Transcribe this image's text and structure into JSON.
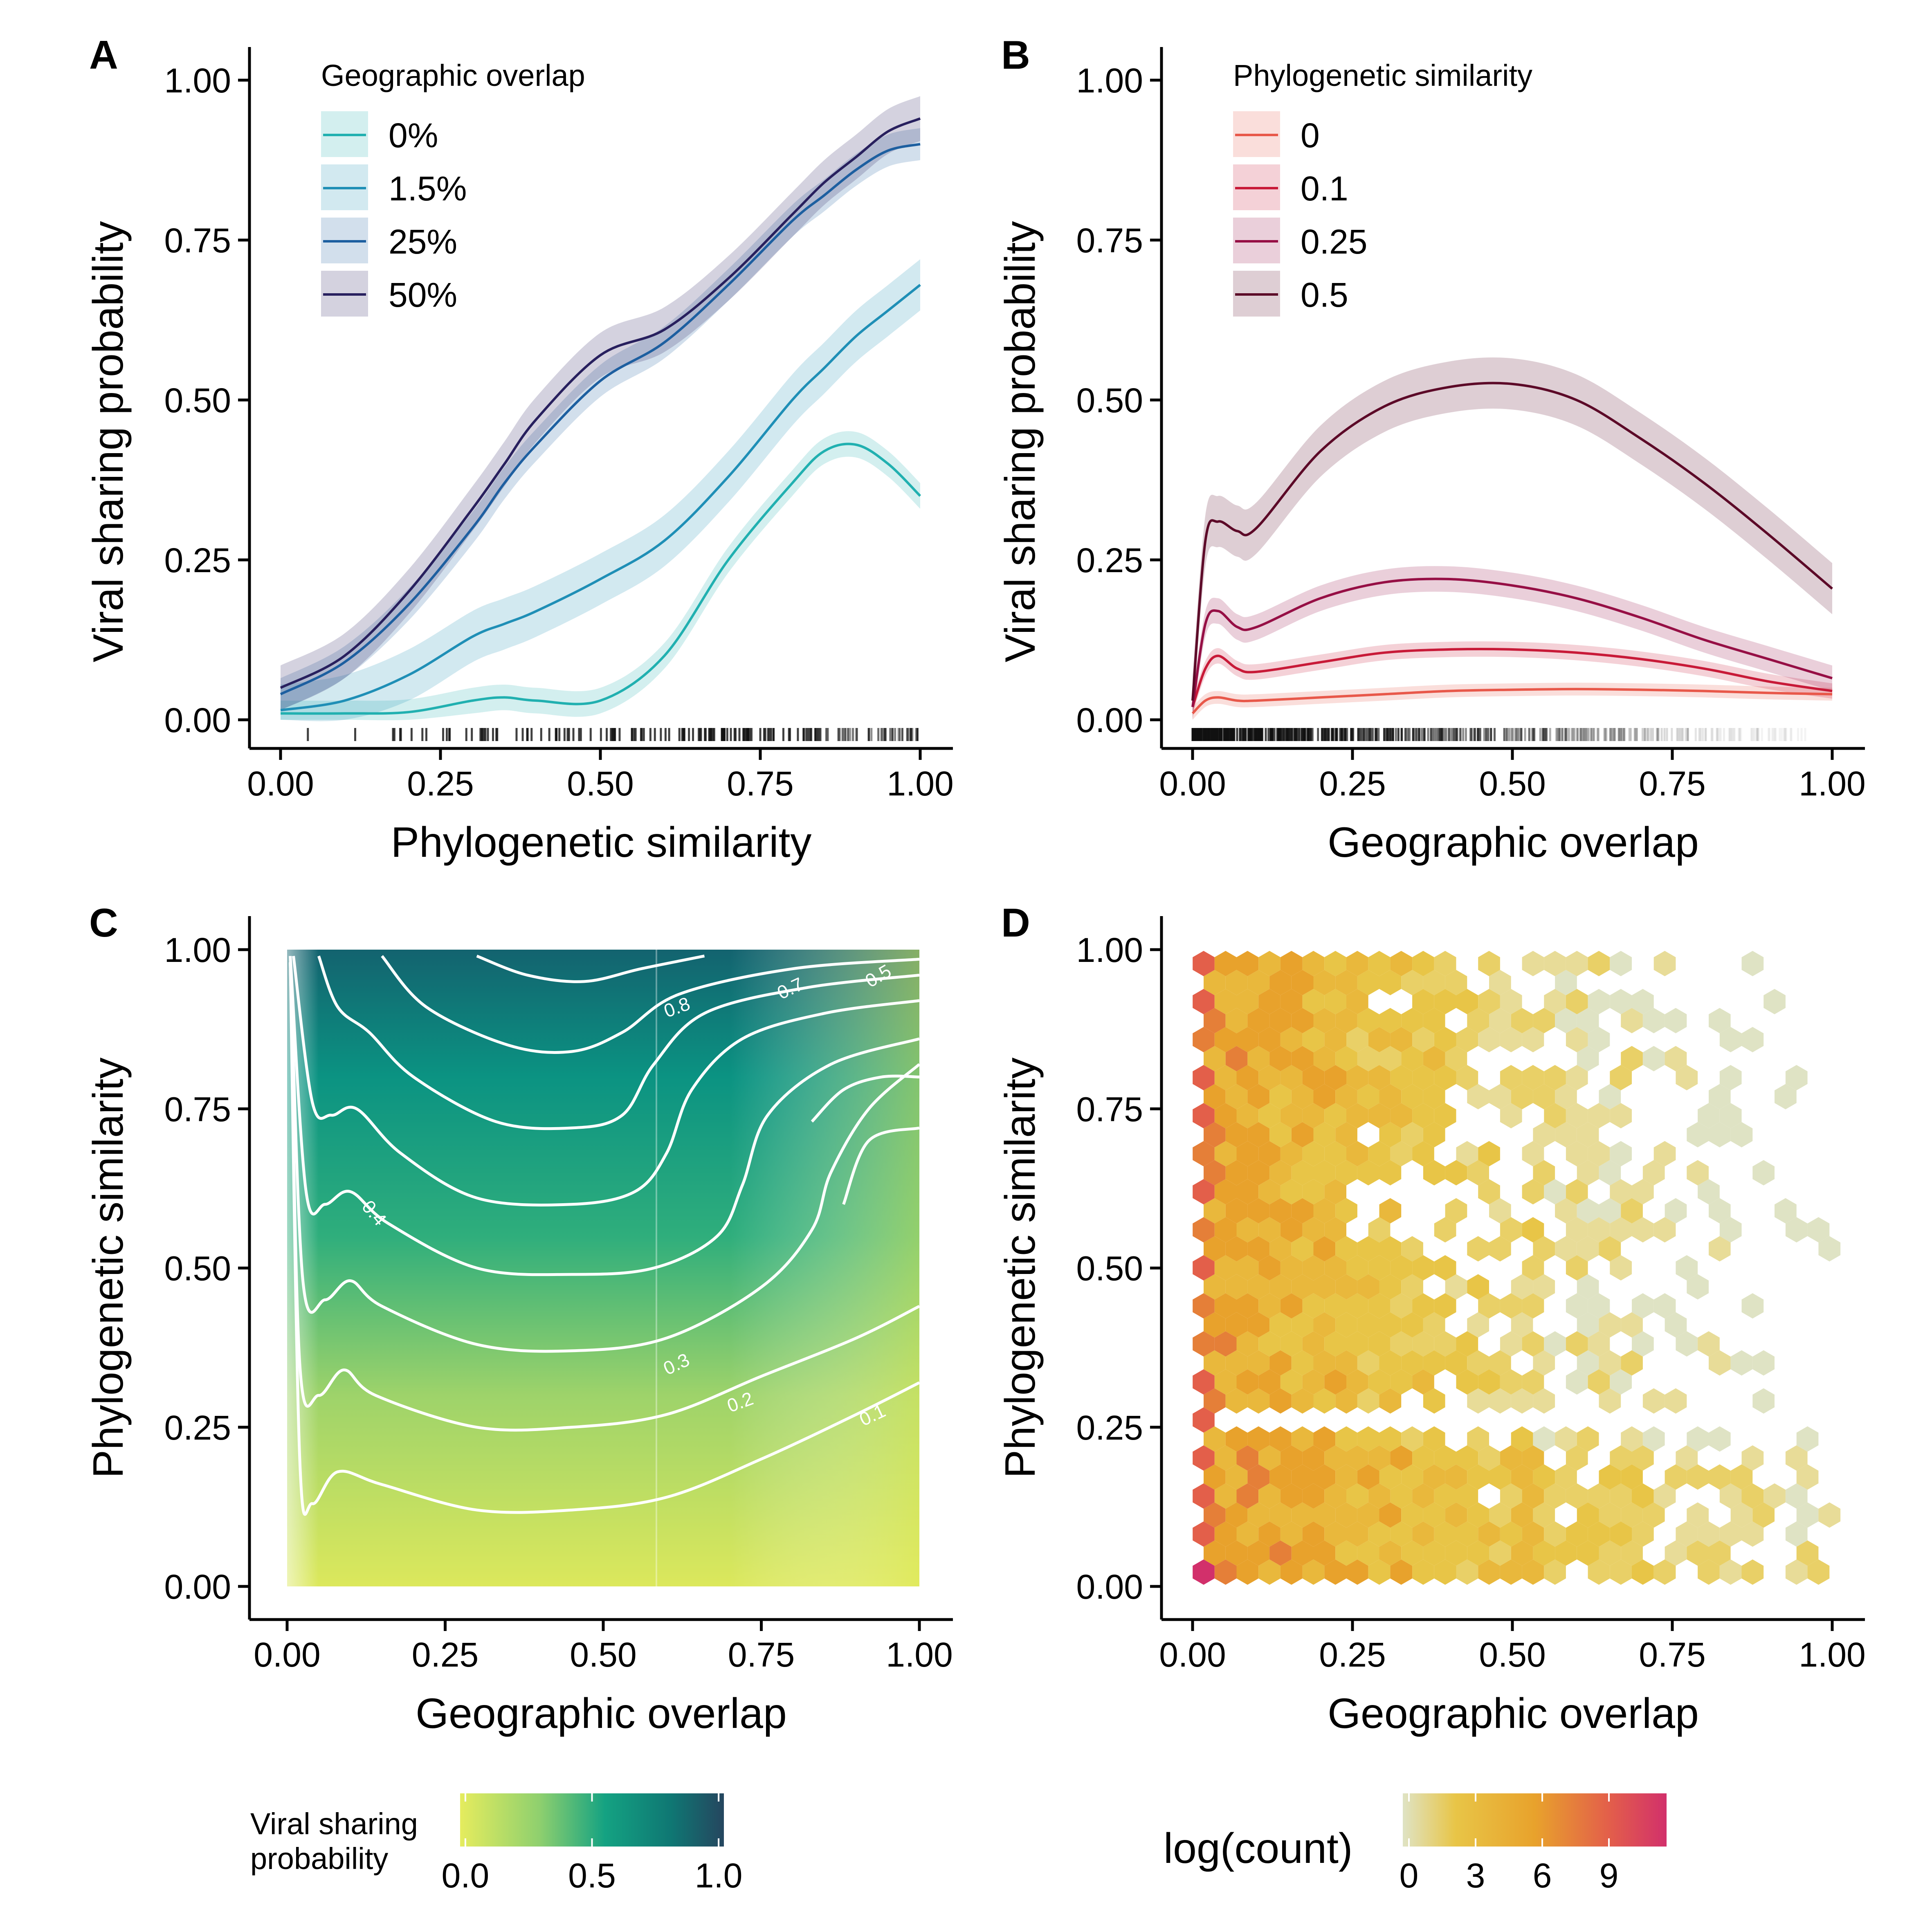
{
  "chart_data": [
    {
      "panel": "A",
      "type": "line",
      "xlabel": "Phylogenetic similarity",
      "ylabel": "Viral sharing probability",
      "xlim": [
        0,
        1
      ],
      "ylim": [
        0,
        1
      ],
      "x_ticks": [
        "0.00",
        "0.25",
        "0.50",
        "0.75",
        "1.00"
      ],
      "y_ticks": [
        "0.00",
        "0.25",
        "0.50",
        "0.75",
        "1.00"
      ],
      "legend": {
        "title": "Geographic overlap",
        "placement": "top-left"
      },
      "x": [
        0,
        0.1,
        0.2,
        0.3,
        0.35,
        0.4,
        0.5,
        0.6,
        0.7,
        0.8,
        0.85,
        0.9,
        0.95,
        1.0
      ],
      "series": [
        {
          "name": "0%",
          "color": "#21b0b0",
          "values": [
            0.01,
            0.01,
            0.012,
            0.03,
            0.035,
            0.03,
            0.03,
            0.1,
            0.25,
            0.37,
            0.42,
            0.43,
            0.4,
            0.35
          ],
          "band": 0.02
        },
        {
          "name": "1.5%",
          "color": "#1f8fb6",
          "values": [
            0.015,
            0.03,
            0.07,
            0.13,
            0.15,
            0.17,
            0.22,
            0.28,
            0.38,
            0.5,
            0.55,
            0.6,
            0.64,
            0.68
          ],
          "band": 0.04
        },
        {
          "name": "25%",
          "color": "#1d5fa0",
          "values": [
            0.04,
            0.09,
            0.18,
            0.3,
            0.37,
            0.43,
            0.53,
            0.59,
            0.68,
            0.78,
            0.82,
            0.86,
            0.89,
            0.9
          ],
          "band": 0.025
        },
        {
          "name": "50%",
          "color": "#28205e",
          "values": [
            0.05,
            0.1,
            0.2,
            0.33,
            0.4,
            0.47,
            0.57,
            0.61,
            0.69,
            0.79,
            0.84,
            0.88,
            0.92,
            0.94
          ],
          "band": 0.035
        }
      ]
    },
    {
      "panel": "B",
      "type": "line",
      "xlabel": "Geographic overlap",
      "ylabel": "Viral sharing probability",
      "xlim": [
        0,
        1
      ],
      "ylim": [
        0,
        1
      ],
      "x_ticks": [
        "0.00",
        "0.25",
        "0.50",
        "0.75",
        "1.00"
      ],
      "y_ticks": [
        "0.00",
        "0.25",
        "0.50",
        "0.75",
        "1.00"
      ],
      "legend": {
        "title": "Phylogenetic similarity",
        "placement": "top-left"
      },
      "x": [
        0,
        0.02,
        0.04,
        0.07,
        0.1,
        0.2,
        0.3,
        0.4,
        0.5,
        0.6,
        0.7,
        0.8,
        0.9,
        1.0
      ],
      "series": [
        {
          "name": "0",
          "color": "#e8584a",
          "values": [
            0.01,
            0.03,
            0.035,
            0.03,
            0.03,
            0.035,
            0.04,
            0.045,
            0.047,
            0.048,
            0.047,
            0.045,
            0.042,
            0.04
          ],
          "band": 0.01
        },
        {
          "name": "0.1",
          "color": "#c81a38",
          "values": [
            0.02,
            0.08,
            0.1,
            0.08,
            0.075,
            0.09,
            0.105,
            0.11,
            0.11,
            0.105,
            0.095,
            0.08,
            0.06,
            0.045
          ],
          "band": 0.012
        },
        {
          "name": "0.25",
          "color": "#960f45",
          "values": [
            0.02,
            0.15,
            0.17,
            0.145,
            0.145,
            0.19,
            0.215,
            0.22,
            0.21,
            0.19,
            0.16,
            0.125,
            0.095,
            0.065
          ],
          "band": 0.02
        },
        {
          "name": "0.5",
          "color": "#5c0a28",
          "values": [
            0.03,
            0.28,
            0.31,
            0.295,
            0.3,
            0.42,
            0.49,
            0.52,
            0.525,
            0.5,
            0.44,
            0.37,
            0.29,
            0.205
          ],
          "band": 0.04
        }
      ]
    },
    {
      "panel": "C",
      "type": "heatmap",
      "xlabel": "Geographic overlap",
      "ylabel": "Phylogenetic similarity",
      "xlim": [
        0,
        1
      ],
      "ylim": [
        0,
        1
      ],
      "x_ticks": [
        "0.00",
        "0.25",
        "0.50",
        "0.75",
        "1.00"
      ],
      "y_ticks": [
        "0.00",
        "0.25",
        "0.50",
        "0.75",
        "1.00"
      ],
      "contour_labels": [
        "0.8",
        "0.7",
        "0.5",
        "0.4",
        "0.3",
        "0.2",
        "0.1"
      ],
      "colorbar": {
        "title": "Viral sharing probability",
        "ticks": [
          "0.0",
          "0.5",
          "1.0"
        ],
        "colors": [
          "#e5ec5e",
          "#5cbf76",
          "#0c9a84",
          "#25465f"
        ]
      }
    },
    {
      "panel": "D",
      "type": "heatmap",
      "xlabel": "Geographic overlap",
      "ylabel": "Phylogenetic similarity",
      "xlim": [
        0,
        1
      ],
      "ylim": [
        0,
        1
      ],
      "x_ticks": [
        "0.00",
        "0.25",
        "0.50",
        "0.75",
        "1.00"
      ],
      "y_ticks": [
        "0.00",
        "0.25",
        "0.50",
        "0.75",
        "1.00"
      ],
      "colorbar": {
        "title": "log(count)",
        "ticks": [
          "0",
          "3",
          "6",
          "9"
        ],
        "colors": [
          "#dfe3c4",
          "#e8c547",
          "#e8a22c",
          "#e35f4a",
          "#d2306b"
        ]
      }
    }
  ]
}
